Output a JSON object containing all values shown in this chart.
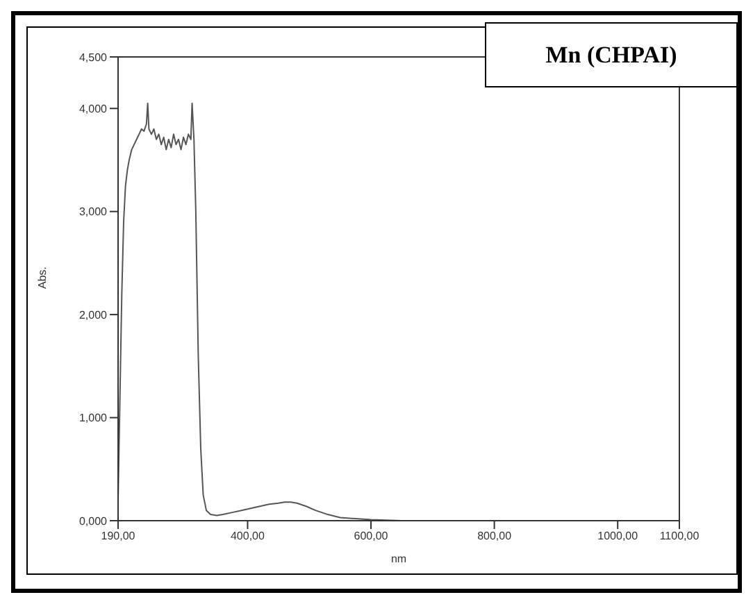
{
  "chart_data": {
    "type": "line",
    "title": "Mn (CHPAI)",
    "xlabel": "nm",
    "ylabel": "Abs.",
    "x": [
      190,
      193,
      196,
      199,
      202,
      205,
      208,
      212,
      216,
      220,
      224,
      228,
      232,
      236,
      238,
      240,
      244,
      248,
      252,
      256,
      260,
      264,
      268,
      272,
      276,
      280,
      284,
      288,
      292,
      296,
      300,
      304,
      308,
      310,
      313,
      316,
      320,
      324,
      328,
      333,
      340,
      350,
      360,
      375,
      390,
      405,
      420,
      435,
      450,
      460,
      470,
      480,
      495,
      510,
      530,
      550,
      575,
      600,
      650,
      700,
      800,
      900,
      1000,
      1100
    ],
    "series": [
      {
        "color": "#555555",
        "values": [
          0.2,
          1.2,
          2.2,
          2.9,
          3.25,
          3.4,
          3.5,
          3.6,
          3.65,
          3.7,
          3.75,
          3.8,
          3.78,
          3.85,
          4.05,
          3.8,
          3.75,
          3.8,
          3.7,
          3.75,
          3.65,
          3.72,
          3.6,
          3.7,
          3.62,
          3.75,
          3.65,
          3.7,
          3.6,
          3.72,
          3.65,
          3.75,
          3.7,
          4.05,
          3.7,
          3.0,
          1.6,
          0.7,
          0.25,
          0.1,
          0.06,
          0.05,
          0.06,
          0.08,
          0.1,
          0.12,
          0.14,
          0.16,
          0.17,
          0.18,
          0.18,
          0.17,
          0.14,
          0.1,
          0.06,
          0.03,
          0.02,
          0.01,
          0.0,
          0.0,
          0.0,
          0.0,
          0.0,
          0.0
        ]
      }
    ],
    "xlim": [
      190,
      1100
    ],
    "ylim": [
      0,
      4.5
    ],
    "xticks": [
      {
        "value": 190,
        "label": "190,00"
      },
      {
        "value": 400,
        "label": "400,00"
      },
      {
        "value": 600,
        "label": "600,00"
      },
      {
        "value": 800,
        "label": "800,00"
      },
      {
        "value": 1000,
        "label": "1000,00"
      },
      {
        "value": 1100,
        "label": "1100,00"
      }
    ],
    "yticks": [
      {
        "value": 0,
        "label": "0,000"
      },
      {
        "value": 1,
        "label": "1,000"
      },
      {
        "value": 2,
        "label": "2,000"
      },
      {
        "value": 3,
        "label": "3,000"
      },
      {
        "value": 4,
        "label": "4,000"
      },
      {
        "value": 4.5,
        "label": "4,500"
      }
    ],
    "grid": false,
    "legend": false,
    "marker": "none",
    "line_style": "solid"
  }
}
